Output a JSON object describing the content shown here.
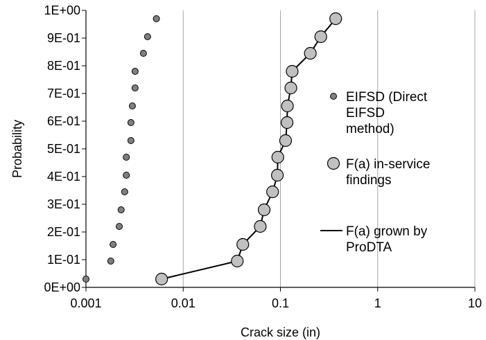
{
  "chart_data": {
    "type": "scatter",
    "xlabel": "Crack size (in)",
    "ylabel": "Probability",
    "x_scale": "log",
    "xlim": [
      0.001,
      10
    ],
    "ylim": [
      0,
      1
    ],
    "x_ticks": [
      "0.001",
      "0.01",
      "0.1",
      "1",
      "10"
    ],
    "y_ticks": [
      "0E+00",
      "1E-01",
      "2E-01",
      "3E-01",
      "4E-01",
      "5E-01",
      "6E-01",
      "7E-01",
      "8E-01",
      "9E-01",
      "1E+00"
    ],
    "grid": "vertical",
    "legend_position": "right",
    "series": [
      {
        "name": "EIFSD (Direct EIFSD method)",
        "name_lines": [
          "EIFSD (Direct",
          "EIFSD",
          "method)"
        ],
        "style": "small-marker",
        "color": "#808080",
        "x": [
          0.001,
          0.0018,
          0.0019,
          0.0022,
          0.0023,
          0.0025,
          0.0026,
          0.0026,
          0.0029,
          0.0029,
          0.003,
          0.0032,
          0.0032,
          0.0039,
          0.0043,
          0.0053
        ],
        "y": [
          0.03,
          0.095,
          0.155,
          0.22,
          0.28,
          0.345,
          0.405,
          0.47,
          0.53,
          0.595,
          0.655,
          0.72,
          0.78,
          0.845,
          0.905,
          0.97
        ]
      },
      {
        "name": "F(a) in-service findings",
        "name_lines": [
          "F(a) in-service",
          "findings"
        ],
        "style": "large-marker",
        "color": "#c0c0c0",
        "x": [
          0.006,
          0.036,
          0.041,
          0.062,
          0.068,
          0.083,
          0.093,
          0.094,
          0.113,
          0.117,
          0.118,
          0.128,
          0.132,
          0.203,
          0.26,
          0.37
        ],
        "y": [
          0.03,
          0.095,
          0.155,
          0.22,
          0.28,
          0.345,
          0.405,
          0.47,
          0.53,
          0.595,
          0.655,
          0.72,
          0.78,
          0.845,
          0.905,
          0.97
        ]
      },
      {
        "name": "F(a) grown by ProDTA",
        "name_lines": [
          "F(a) grown by",
          "ProDTA"
        ],
        "style": "line",
        "color": "#000000",
        "x": [
          0.006,
          0.036,
          0.041,
          0.062,
          0.068,
          0.083,
          0.093,
          0.094,
          0.113,
          0.117,
          0.118,
          0.128,
          0.132,
          0.203,
          0.26,
          0.37
        ],
        "y": [
          0.03,
          0.095,
          0.155,
          0.22,
          0.28,
          0.345,
          0.405,
          0.47,
          0.53,
          0.595,
          0.655,
          0.72,
          0.78,
          0.845,
          0.905,
          0.97
        ]
      }
    ]
  }
}
